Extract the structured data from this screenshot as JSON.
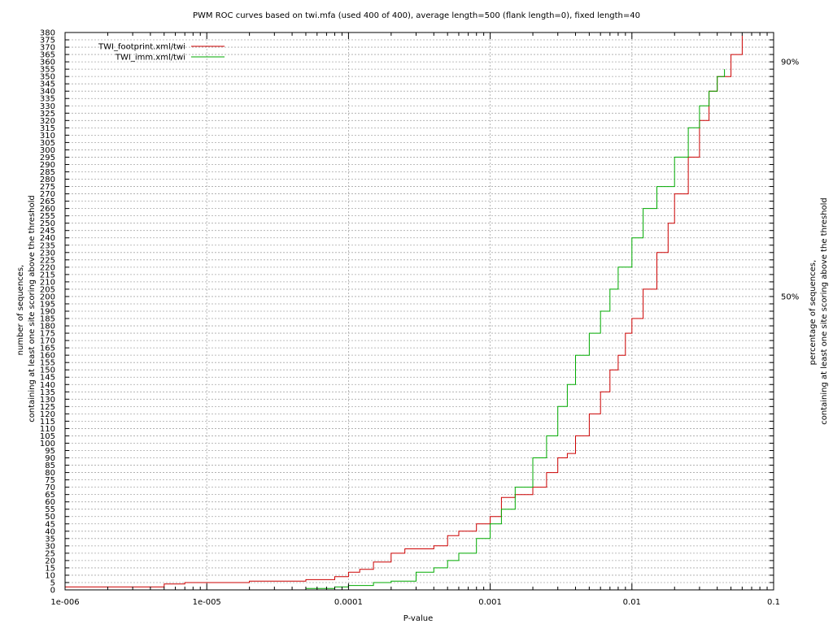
{
  "chart_data": {
    "type": "line",
    "title": "PWM ROC curves based on twi.mfa (used 400 of 400), average length=500 (flank length=0), fixed length=40",
    "xlabel": "P-value",
    "ylabel_lines": [
      "number of sequences,",
      "containing at least one site scoring above the threshold"
    ],
    "y2label_lines": [
      "percentage of sequences,",
      "containing at least one site scoring above the threshold"
    ],
    "x_scale": "log",
    "xlim": [
      1e-06,
      0.1
    ],
    "ylim": [
      0,
      380
    ],
    "x_ticks": [
      {
        "value": 1e-06,
        "label": "1e-006"
      },
      {
        "value": 1e-05,
        "label": "1e-005"
      },
      {
        "value": 0.0001,
        "label": "0.0001"
      },
      {
        "value": 0.001,
        "label": "0.001"
      },
      {
        "value": 0.01,
        "label": "0.01"
      },
      {
        "value": 0.1,
        "label": "0.1"
      }
    ],
    "y_tick_step": 5,
    "y2_ticks": [
      {
        "value": 360,
        "label": "90%"
      },
      {
        "value": 200,
        "label": "50%"
      }
    ],
    "grid": true,
    "legend": "top-left",
    "series": [
      {
        "name": "TWI_footprint.xml/twi",
        "color": "#cc0000",
        "points": [
          [
            1e-06,
            2
          ],
          [
            2e-06,
            2
          ],
          [
            5e-06,
            4
          ],
          [
            7e-06,
            5
          ],
          [
            1e-05,
            5
          ],
          [
            2e-05,
            6
          ],
          [
            4e-05,
            6
          ],
          [
            5e-05,
            7
          ],
          [
            8e-05,
            9
          ],
          [
            0.0001,
            12
          ],
          [
            0.00012,
            14
          ],
          [
            0.00015,
            19
          ],
          [
            0.0002,
            25
          ],
          [
            0.00025,
            28
          ],
          [
            0.00035,
            28
          ],
          [
            0.0004,
            30
          ],
          [
            0.0005,
            37
          ],
          [
            0.0006,
            40
          ],
          [
            0.0008,
            45
          ],
          [
            0.001,
            50
          ],
          [
            0.0012,
            63
          ],
          [
            0.0015,
            65
          ],
          [
            0.002,
            70
          ],
          [
            0.0025,
            80
          ],
          [
            0.003,
            90
          ],
          [
            0.0035,
            93
          ],
          [
            0.004,
            105
          ],
          [
            0.005,
            120
          ],
          [
            0.006,
            135
          ],
          [
            0.007,
            150
          ],
          [
            0.008,
            160
          ],
          [
            0.009,
            175
          ],
          [
            0.01,
            185
          ],
          [
            0.012,
            205
          ],
          [
            0.015,
            230
          ],
          [
            0.018,
            250
          ],
          [
            0.02,
            270
          ],
          [
            0.025,
            295
          ],
          [
            0.03,
            320
          ],
          [
            0.035,
            340
          ],
          [
            0.04,
            350
          ],
          [
            0.05,
            365
          ],
          [
            0.06,
            378
          ]
        ]
      },
      {
        "name": "TWI_imm.xml/twi",
        "color": "#00aa00",
        "points": [
          [
            5e-05,
            1
          ],
          [
            8e-05,
            2
          ],
          [
            0.0001,
            3
          ],
          [
            0.00015,
            5
          ],
          [
            0.0002,
            6
          ],
          [
            0.0003,
            12
          ],
          [
            0.0004,
            15
          ],
          [
            0.0005,
            20
          ],
          [
            0.0006,
            25
          ],
          [
            0.0008,
            35
          ],
          [
            0.001,
            45
          ],
          [
            0.0012,
            55
          ],
          [
            0.0015,
            70
          ],
          [
            0.002,
            90
          ],
          [
            0.0025,
            105
          ],
          [
            0.003,
            125
          ],
          [
            0.0035,
            140
          ],
          [
            0.004,
            160
          ],
          [
            0.005,
            175
          ],
          [
            0.006,
            190
          ],
          [
            0.007,
            205
          ],
          [
            0.008,
            220
          ],
          [
            0.01,
            240
          ],
          [
            0.012,
            260
          ],
          [
            0.015,
            275
          ],
          [
            0.02,
            295
          ],
          [
            0.025,
            315
          ],
          [
            0.03,
            330
          ],
          [
            0.035,
            340
          ],
          [
            0.04,
            350
          ],
          [
            0.045,
            355
          ]
        ]
      }
    ]
  }
}
